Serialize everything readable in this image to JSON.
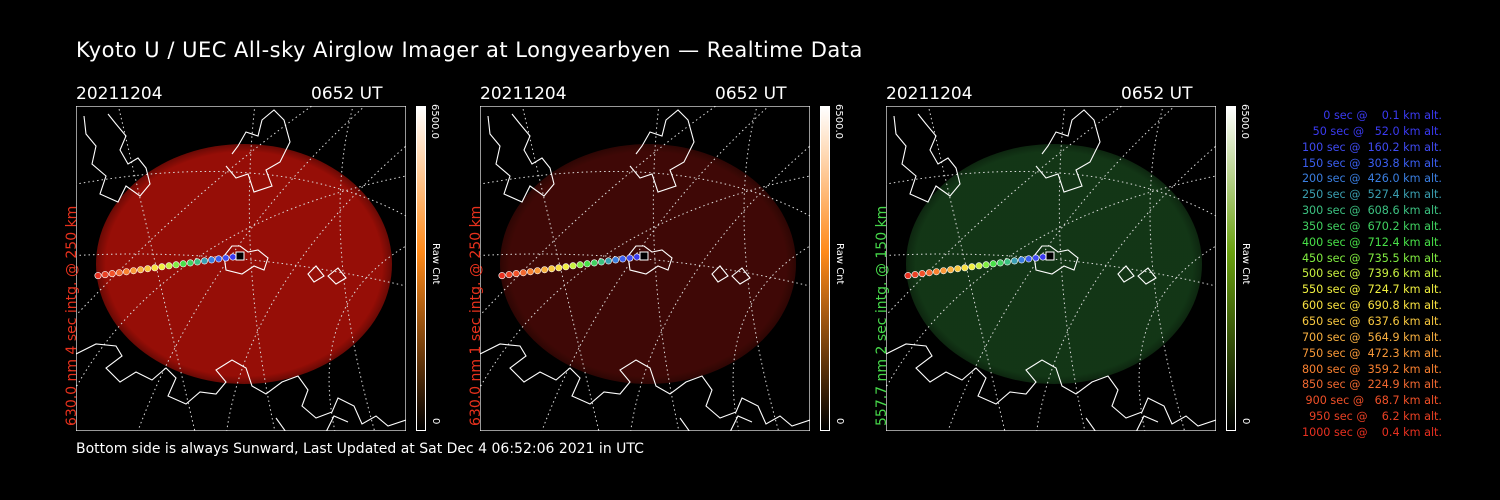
{
  "title": "Kyoto U / UEC All-sky Airglow Imager at Longyearbyen — Realtime Data",
  "panels": [
    {
      "date": "20211204",
      "time": "0652 UT",
      "label": "630.0 nm 4 sec intg. @ 250 km",
      "label_color": "#e8311c",
      "cb_max": "6500.0",
      "cb_min": "0",
      "cb_unit": "Raw Cnt",
      "glow_color": "#b01008",
      "glow_opacity": 0.85,
      "cb_top": "#ffffff",
      "cb_mid": "#ff8a1a",
      "cb_bot": "#000000"
    },
    {
      "date": "20211204",
      "time": "0652 UT",
      "label": "630.0 nm 1 sec intg. @ 250 km",
      "label_color": "#e8311c",
      "cb_max": "6500.0",
      "cb_min": "0",
      "cb_unit": "Raw Cnt",
      "glow_color": "#5a0c08",
      "glow_opacity": 0.7,
      "cb_top": "#ffffff",
      "cb_mid": "#ff8a1a",
      "cb_bot": "#000000"
    },
    {
      "date": "20211204",
      "time": "0652 UT",
      "label": "557.7 nm 2 sec intg. @ 150 km",
      "label_color": "#46d84a",
      "cb_max": "6500.0",
      "cb_min": "0",
      "cb_unit": "Raw Cnt",
      "glow_color": "#16401a",
      "glow_opacity": 0.85,
      "cb_top": "#ffffff",
      "cb_mid": "#6aa010",
      "cb_bot": "#000000"
    }
  ],
  "legend": [
    {
      "text": "0 sec @    0.1 km alt.",
      "color": "#3a3af0"
    },
    {
      "text": "50 sec @   52.0 km alt.",
      "color": "#3a3af0"
    },
    {
      "text": "100 sec @  160.2 km alt.",
      "color": "#3f4af0"
    },
    {
      "text": "150 sec @  303.8 km alt.",
      "color": "#3a5ef0"
    },
    {
      "text": "200 sec @  426.0 km alt.",
      "color": "#3a7ee0"
    },
    {
      "text": "250 sec @  527.4 km alt.",
      "color": "#3a9eb0"
    },
    {
      "text": "300 sec @  608.6 km alt.",
      "color": "#3cc080"
    },
    {
      "text": "350 sec @  670.2 km alt.",
      "color": "#40d060"
    },
    {
      "text": "400 sec @  712.4 km alt.",
      "color": "#48e048"
    },
    {
      "text": "450 sec @  735.5 km alt.",
      "color": "#80ec40"
    },
    {
      "text": "500 sec @  739.6 km alt.",
      "color": "#c8f040"
    },
    {
      "text": "550 sec @  724.7 km alt.",
      "color": "#f0f040"
    },
    {
      "text": "600 sec @  690.8 km alt.",
      "color": "#f8e040"
    },
    {
      "text": "650 sec @  637.6 km alt.",
      "color": "#f8c840"
    },
    {
      "text": "700 sec @  564.9 km alt.",
      "color": "#f8b040"
    },
    {
      "text": "750 sec @  472.3 km alt.",
      "color": "#f89838"
    },
    {
      "text": "800 sec @  359.2 km alt.",
      "color": "#f88030"
    },
    {
      "text": "850 sec @  224.9 km alt.",
      "color": "#f06830"
    },
    {
      "text": "900 sec @   68.7 km alt.",
      "color": "#f05028"
    },
    {
      "text": "950 sec @    6.2 km alt.",
      "color": "#e84024"
    },
    {
      "text": "1000 sec @    0.4 km alt.",
      "color": "#e83020"
    }
  ],
  "footer": "Bottom side is always Sunward, Last Updated at Sat Dec  4 06:52:06 2021 in UTC"
}
